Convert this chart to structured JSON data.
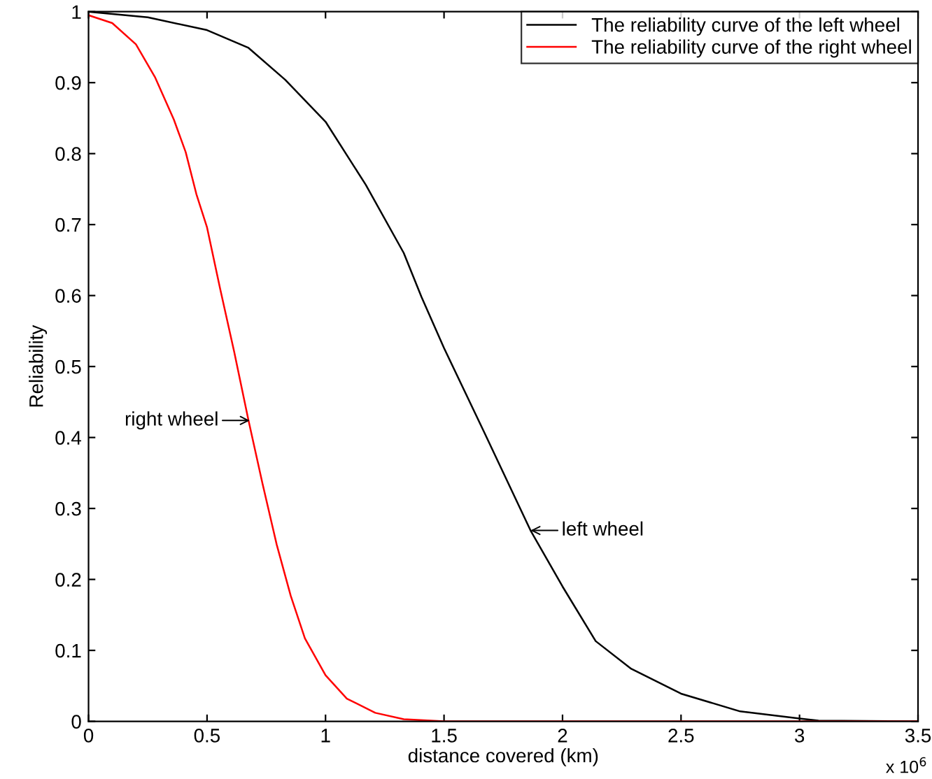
{
  "chart_data": {
    "type": "line",
    "xlabel": "distance covered (km)",
    "ylabel": "Reliability",
    "xlim": [
      0,
      3.5
    ],
    "xticks": [
      0,
      0.5,
      1,
      1.5,
      2,
      2.5,
      3,
      3.5
    ],
    "ylim": [
      0,
      1
    ],
    "yticks": [
      0,
      0.1,
      0.2,
      0.3,
      0.4,
      0.5,
      0.6,
      0.7,
      0.8,
      0.9,
      1
    ],
    "grid": false,
    "legend": "top right",
    "series": [
      {
        "name": "The reliability curve of the left wheel",
        "color": "#000000",
        "x": [
          0,
          0.25,
          0.5,
          0.675,
          0.83,
          1.0,
          1.17,
          1.33,
          1.405,
          1.5,
          1.67,
          1.865,
          2.0,
          2.14,
          2.29,
          2.5,
          2.75,
          3.0,
          3.08,
          3.5
        ],
        "values": [
          1.0,
          0.992,
          0.974,
          0.949,
          0.904,
          0.845,
          0.756,
          0.66,
          0.598,
          0.526,
          0.407,
          0.269,
          0.19,
          0.113,
          0.074,
          0.039,
          0.014,
          0.004,
          0.001,
          0
        ]
      },
      {
        "name": "The reliability curve of the right wheel",
        "color": "#ff0000",
        "x": [
          0,
          0.1,
          0.2,
          0.28,
          0.36,
          0.41,
          0.455,
          0.5,
          0.555,
          0.615,
          0.675,
          0.734,
          0.794,
          0.853,
          0.913,
          1.0,
          1.09,
          1.21,
          1.33,
          1.5,
          3.5
        ],
        "values": [
          0.995,
          0.984,
          0.954,
          0.908,
          0.848,
          0.802,
          0.743,
          0.696,
          0.61,
          0.52,
          0.424,
          0.335,
          0.249,
          0.177,
          0.117,
          0.065,
          0.032,
          0.012,
          0.003,
          0,
          0
        ]
      }
    ],
    "annotations": [
      {
        "text": "right wheel",
        "x": 0.68,
        "y": 0.424
      },
      {
        "text": "left wheel",
        "x": 1.865,
        "y": 0.269
      },
      "x 10$^{6}$"
    ]
  }
}
